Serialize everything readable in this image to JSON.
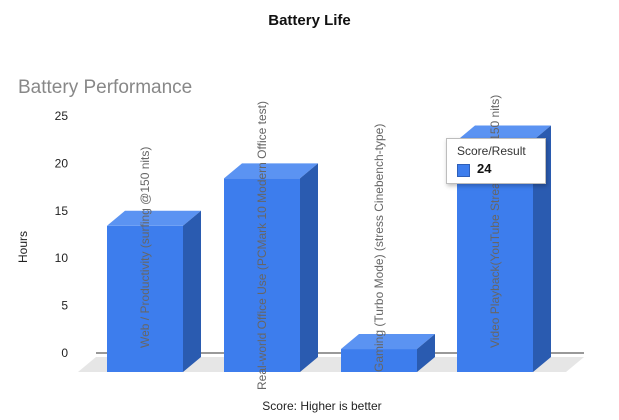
{
  "page": {
    "title": "Battery Life"
  },
  "chart_data": {
    "type": "bar",
    "title": "Battery Performance",
    "xlabel": "Score: Higher is better",
    "ylabel": "Hours",
    "ylim": [
      0,
      25
    ],
    "yticks": [
      0,
      5,
      10,
      15,
      20,
      25
    ],
    "categories": [
      "Web / Productivity (surfing @150 nits)",
      "Real-world Office Use (PCMark 10 Modern Office test)",
      "Gaming (Turbo Mode) (stress Cinebench-type)",
      "Video Playback(YouTube Streaming @150 nits)"
    ],
    "series": [
      {
        "name": "Score/Result",
        "values": [
          15,
          20,
          2,
          24
        ]
      }
    ],
    "grid": false,
    "bar_color": "#3d7ded",
    "tooltip": {
      "title": "Score/Result",
      "value": "24"
    }
  }
}
